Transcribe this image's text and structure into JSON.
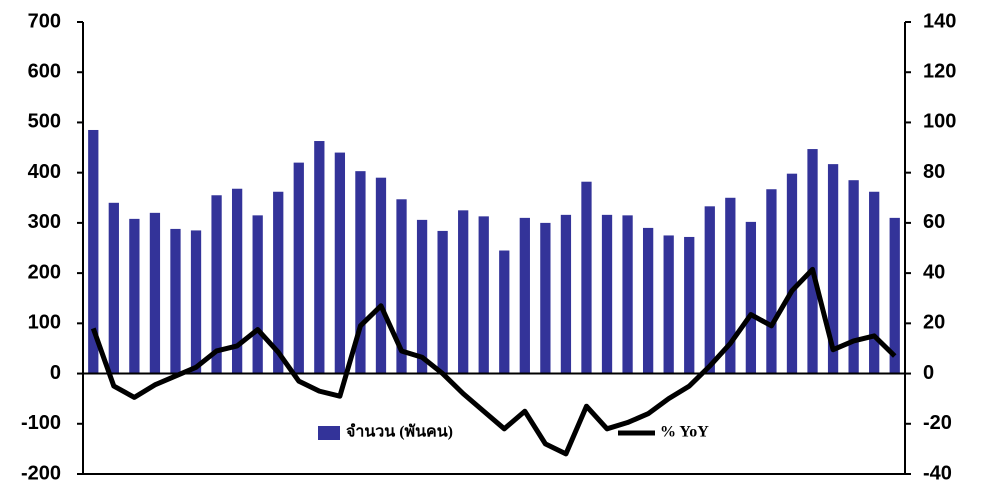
{
  "chart_data": {
    "type": "bar",
    "categories": [
      null,
      null,
      null,
      null,
      null,
      null,
      null,
      null,
      null,
      null,
      null,
      null,
      null,
      null,
      null,
      null,
      null,
      null,
      null,
      null,
      null,
      null,
      null,
      null,
      null,
      null,
      null,
      null,
      null,
      null,
      null,
      null,
      null,
      null,
      null,
      null,
      null,
      null,
      null,
      null
    ],
    "series": [
      {
        "name": "จำนวน (พันคน)",
        "type": "bar",
        "color": "#333399",
        "values": [
          485,
          340,
          308,
          320,
          288,
          285,
          355,
          368,
          315,
          362,
          420,
          463,
          440,
          403,
          390,
          347,
          306,
          284,
          325,
          313,
          245,
          310,
          300,
          316,
          382,
          316,
          315,
          290,
          275,
          272,
          333,
          350,
          302,
          367,
          398,
          447,
          417,
          385,
          362,
          310
        ]
      },
      {
        "name": "% YoY",
        "type": "line",
        "axis": "y2",
        "color": "#000000",
        "values": [
          18,
          -5,
          -9.5,
          -4.5,
          -1,
          2.5,
          9,
          11,
          17.5,
          8.5,
          -3,
          -7,
          -9,
          19,
          27,
          9,
          6.5,
          0,
          -8,
          -15,
          -22,
          -15,
          -28,
          -32,
          -13,
          -22,
          -19.5,
          -16,
          -10,
          -5,
          3,
          12,
          23.5,
          19,
          33,
          41.5,
          9.5,
          13,
          15,
          7
        ]
      }
    ],
    "ylim": [
      -200,
      700
    ],
    "yticks": [
      -200,
      -100,
      0,
      100,
      200,
      300,
      400,
      500,
      600,
      700
    ],
    "y2lim": [
      -40,
      140
    ],
    "y2ticks": [
      -40,
      -20,
      0,
      20,
      40,
      60,
      80,
      100,
      120,
      140
    ],
    "grid": false
  }
}
